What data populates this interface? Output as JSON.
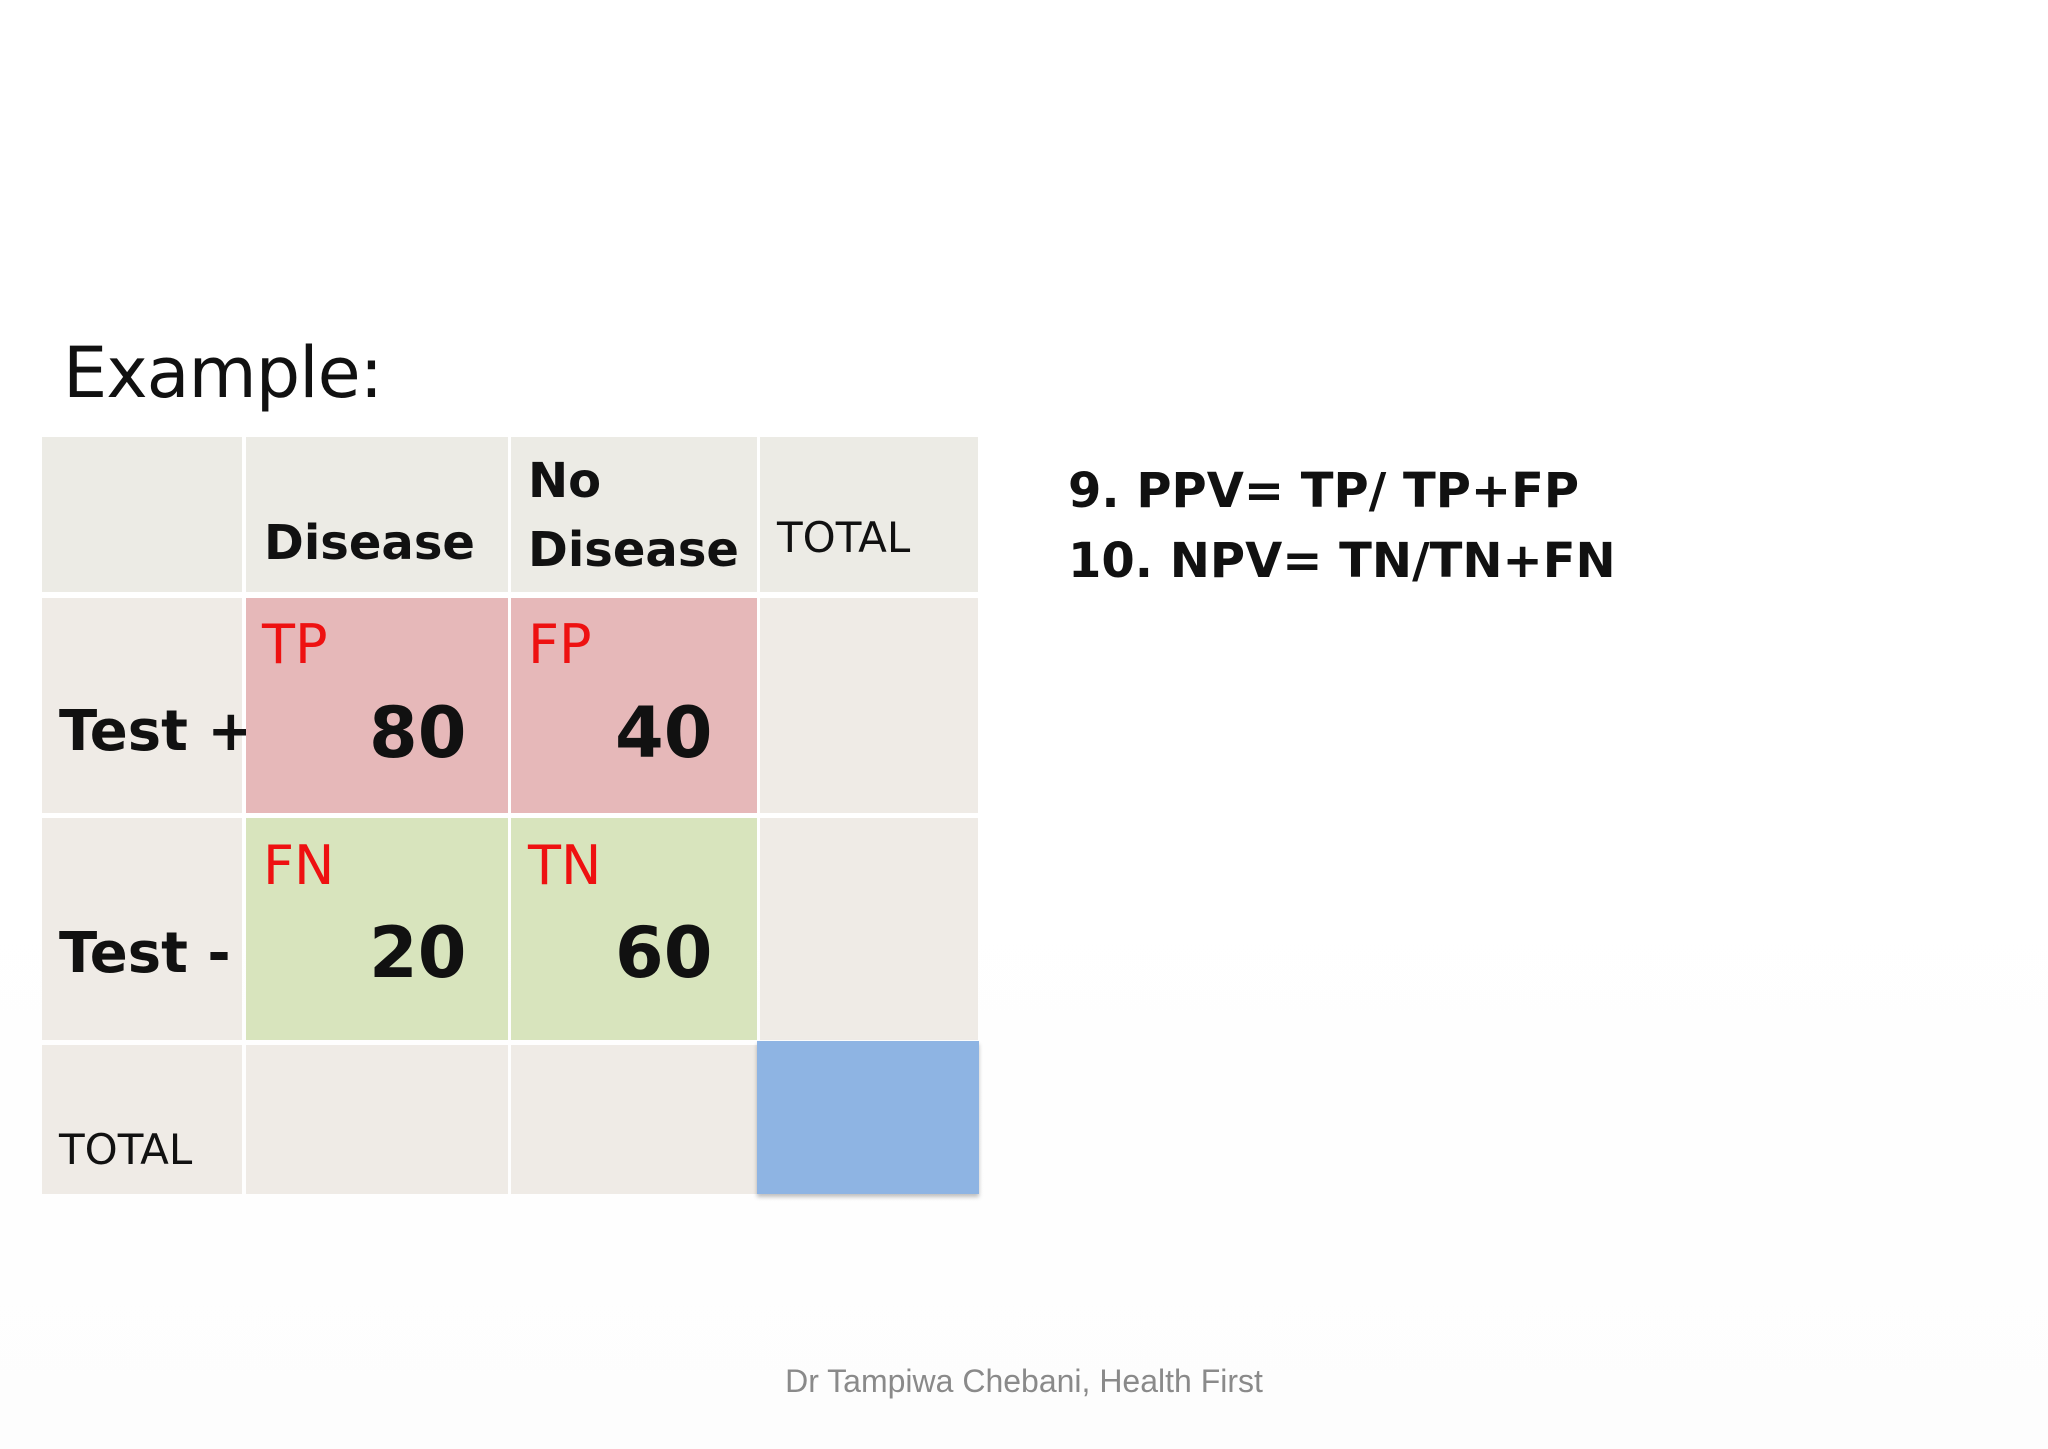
{
  "slide": {
    "title": "Example:",
    "footer": "Dr Tampiwa Chebani, Health First"
  },
  "table": {
    "headers": {
      "disease": "Disease",
      "no_disease_line1": "No",
      "no_disease_line2": "Disease",
      "total": "TOTAL"
    },
    "rows": {
      "test_pos": "Test +",
      "test_neg": "Test -",
      "total": "TOTAL"
    },
    "cells": {
      "tp": {
        "label": "TP",
        "value": "80"
      },
      "fp": {
        "label": "FP",
        "value": "40"
      },
      "fn": {
        "label": "FN",
        "value": "20"
      },
      "tn": {
        "label": "TN",
        "value": "60"
      }
    },
    "colors": {
      "header_bg": "#ecebe5",
      "positive_bg": "#e6b8b9",
      "negative_bg": "#d8e4bd",
      "grand_total_bg": "#8eb4e3",
      "label_color": "#ee1111"
    }
  },
  "formulas": {
    "ppv": "9. PPV= TP/ TP+FP",
    "npv": "10. NPV= TN/TN+FN"
  }
}
